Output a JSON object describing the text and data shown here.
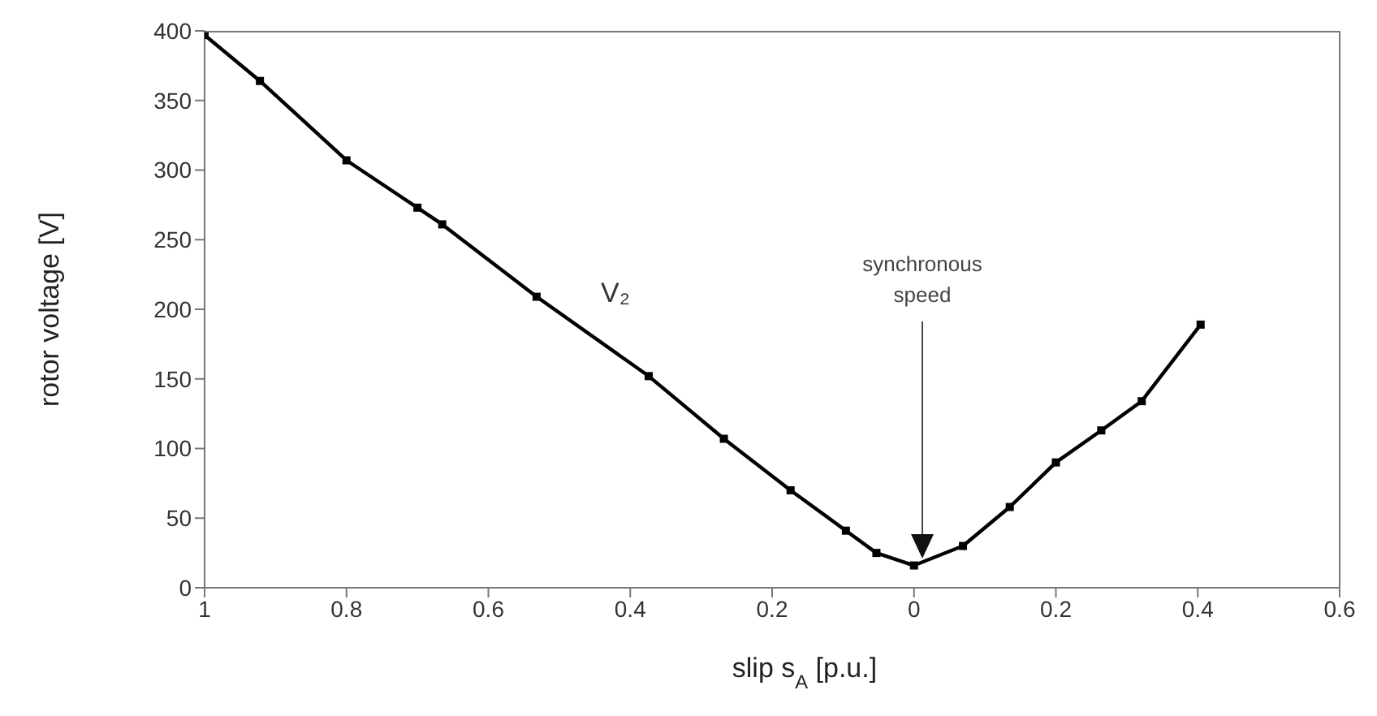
{
  "chart_data": {
    "type": "line",
    "xlabel": "slip s$_{A}$  [p.u.]",
    "ylabel": "rotor voltage  [V]",
    "x": [
      1,
      0.922,
      0.8,
      0.7,
      0.665,
      0.532,
      0.374,
      0.268,
      0.174,
      0.096,
      0.053,
      0,
      -0.069,
      -0.135,
      -0.2,
      -0.264,
      -0.321,
      -0.404
    ],
    "series": [
      {
        "name": "V₂",
        "color": "#000000",
        "values": [
          397,
          364,
          307,
          273,
          261,
          209,
          152,
          107,
          70,
          41,
          25,
          16,
          30,
          58,
          90,
          113,
          134,
          189
        ]
      }
    ],
    "xlim": [
      1,
      -0.6
    ],
    "xticks": [
      1,
      0.8,
      0.6,
      0.4,
      0.2,
      0,
      {
        "value": -0.2,
        "label": "0.2"
      },
      {
        "value": -0.4,
        "label": "0.4"
      },
      {
        "value": -0.6,
        "label": "0.6"
      }
    ],
    "ylim": [
      0,
      400
    ],
    "yticks": [
      0,
      50,
      100,
      150,
      200,
      250,
      300,
      350,
      400
    ],
    "marker": "square",
    "line_style": "solid",
    "annotations": [
      "synchronous speed"
    ]
  }
}
